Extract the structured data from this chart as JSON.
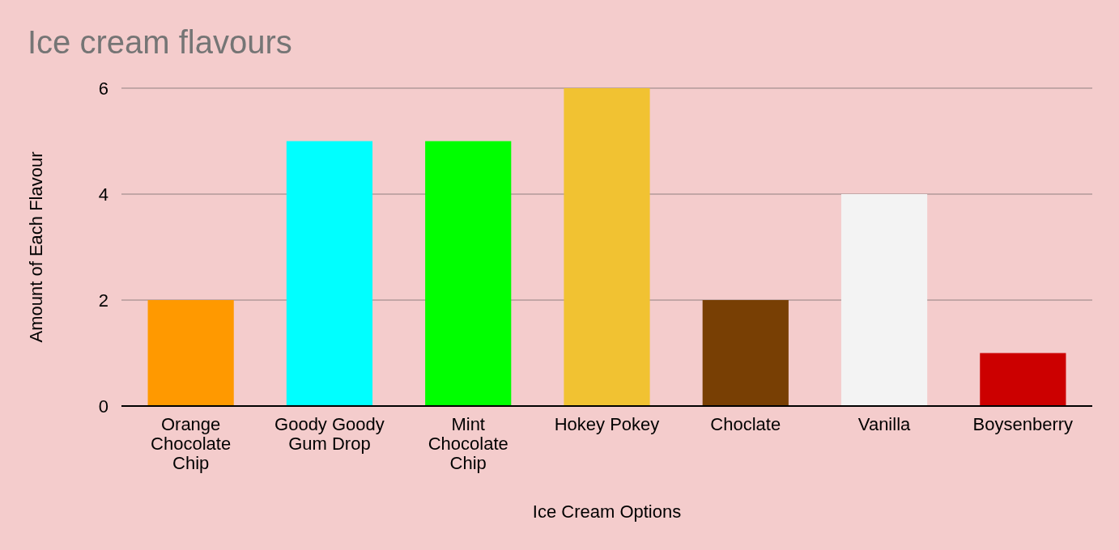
{
  "chart_data": {
    "type": "bar",
    "title": "Ice cream flavours",
    "xlabel": "Ice Cream Options",
    "ylabel": "Amount of Each Flavour",
    "categories": [
      "Orange Chocolate Chip",
      "Goody Goody Gum Drop",
      "Mint Chocolate Chip",
      "Hokey Pokey",
      "Choclate",
      "Vanilla",
      "Boysenberry"
    ],
    "values": [
      2,
      5,
      5,
      6,
      2,
      4,
      1
    ],
    "colors": [
      "#ff9900",
      "#00ffff",
      "#00ff00",
      "#f1c232",
      "#783f04",
      "#f3f3f3",
      "#cc0000"
    ],
    "ylim": [
      0,
      6
    ],
    "yticks": [
      0,
      2,
      4,
      6
    ],
    "grid": "y"
  }
}
